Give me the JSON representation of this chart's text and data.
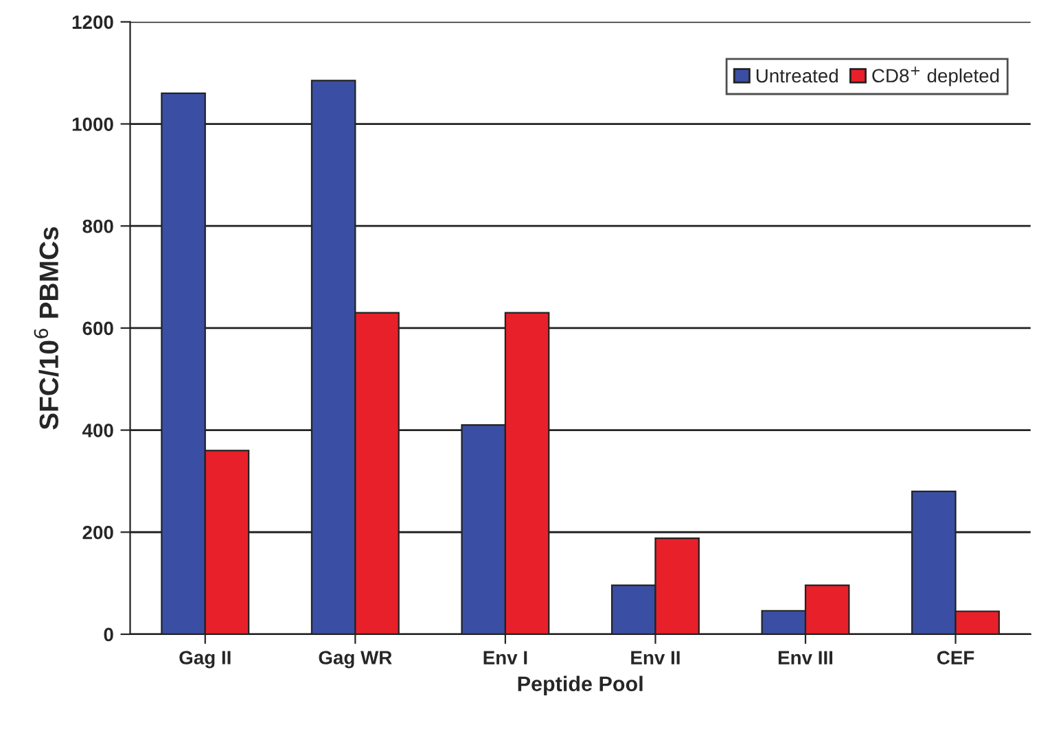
{
  "chart_data": {
    "type": "bar",
    "xlabel": "Peptide Pool",
    "ylabel": "SFC/10$^{6}$ PBMCs",
    "categories": [
      "Gag II",
      "Gag WR",
      "Env I",
      "Env II",
      "Env III",
      "CEF"
    ],
    "series": [
      {
        "name": "Untreated",
        "color": "#3a4fa3",
        "values": [
          1060,
          1085,
          410,
          96,
          46,
          280
        ]
      },
      {
        "name": "CD8$^{+}$ depleted",
        "color": "#e8202a",
        "values": [
          360,
          630,
          630,
          188,
          96,
          45
        ]
      }
    ],
    "ylim": [
      0,
      1200
    ],
    "yticks": [
      0,
      200,
      400,
      600,
      800,
      1000,
      1200
    ],
    "grid": "y",
    "legend": "top right"
  }
}
